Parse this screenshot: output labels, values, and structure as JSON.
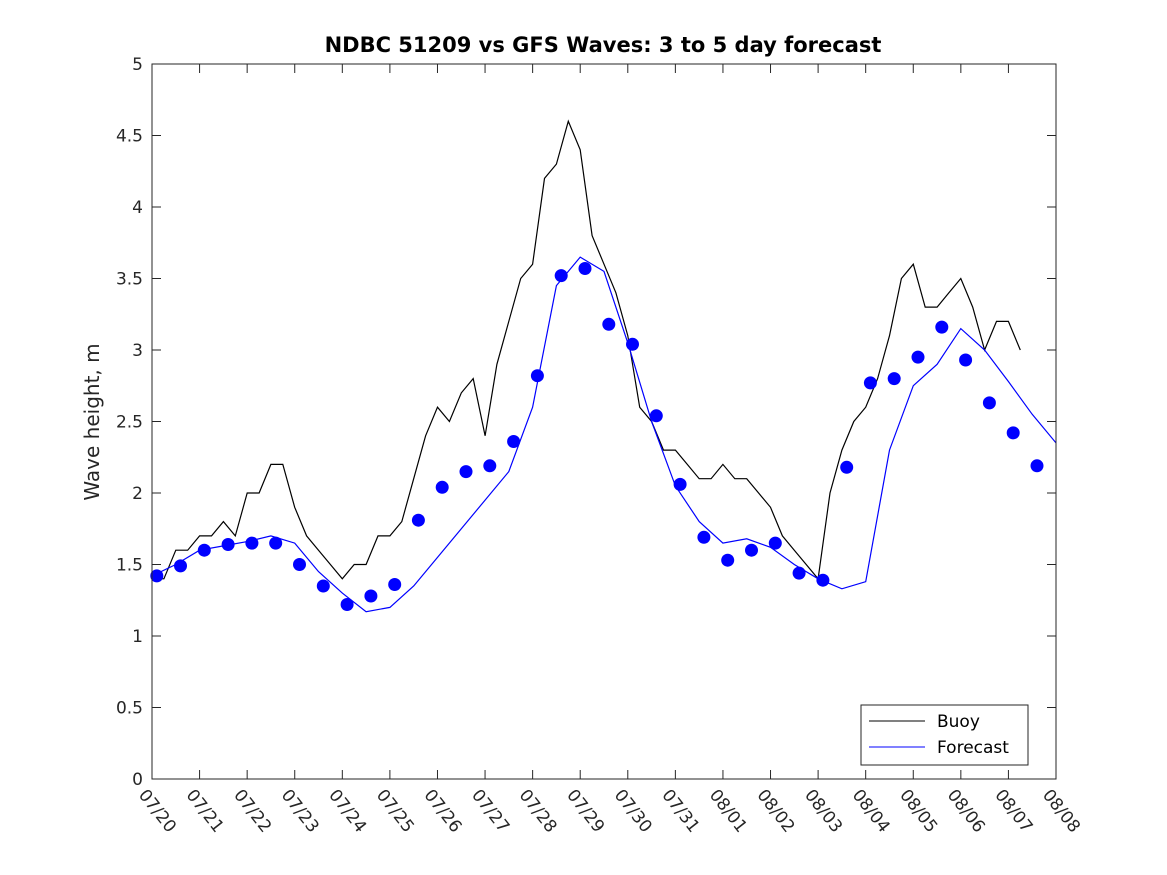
{
  "chart_data": {
    "type": "line",
    "title": "NDBC 51209 vs GFS Waves: 3 to 5 day forecast",
    "xlabel": "",
    "ylabel": "Wave height, m",
    "xlim": [
      0,
      19
    ],
    "ylim": [
      0,
      5
    ],
    "x_ticks": [
      "07/20",
      "07/21",
      "07/22",
      "07/23",
      "07/24",
      "07/25",
      "07/26",
      "07/27",
      "07/28",
      "07/29",
      "07/30",
      "07/31",
      "08/01",
      "08/02",
      "08/03",
      "08/04",
      "08/05",
      "08/06",
      "08/07",
      "08/08"
    ],
    "y_ticks": [
      "0",
      "0.5",
      "1",
      "1.5",
      "2",
      "2.5",
      "3",
      "3.5",
      "4",
      "4.5",
      "5"
    ],
    "grid": false,
    "legend_position": "bottom-right",
    "colors": {
      "buoy": "#000000",
      "forecast": "#0000ff",
      "markers": "#0000ff"
    },
    "series": [
      {
        "name": "Buoy",
        "x": [
          0.0,
          0.25,
          0.5,
          0.75,
          1.0,
          1.25,
          1.5,
          1.75,
          2.0,
          2.25,
          2.5,
          2.75,
          3.0,
          3.25,
          3.5,
          3.75,
          4.0,
          4.25,
          4.5,
          4.75,
          5.0,
          5.25,
          5.5,
          5.75,
          6.0,
          6.25,
          6.5,
          6.75,
          7.0,
          7.25,
          7.5,
          7.75,
          8.0,
          8.25,
          8.5,
          8.75,
          9.0,
          9.25,
          9.5,
          9.75,
          10.0,
          10.25,
          10.5,
          10.75,
          11.0,
          11.25,
          11.5,
          11.75,
          12.0,
          12.25,
          12.5,
          12.75,
          13.0,
          13.25,
          13.5,
          13.75,
          14.0,
          14.25,
          14.5,
          14.75,
          15.0,
          15.25,
          15.5,
          15.75,
          16.0,
          16.25,
          16.5,
          16.75,
          17.0,
          17.25,
          17.5,
          17.75,
          18.0,
          18.25
        ],
        "values": [
          1.4,
          1.4,
          1.6,
          1.6,
          1.7,
          1.7,
          1.8,
          1.7,
          2.0,
          2.0,
          2.2,
          2.2,
          1.9,
          1.7,
          1.6,
          1.5,
          1.4,
          1.5,
          1.5,
          1.7,
          1.7,
          1.8,
          2.1,
          2.4,
          2.6,
          2.5,
          2.7,
          2.8,
          2.4,
          2.9,
          3.2,
          3.5,
          3.6,
          4.2,
          4.3,
          4.6,
          4.4,
          3.8,
          3.6,
          3.4,
          3.1,
          2.6,
          2.5,
          2.3,
          2.3,
          2.2,
          2.1,
          2.1,
          2.2,
          2.1,
          2.1,
          2.0,
          1.9,
          1.7,
          1.6,
          1.5,
          1.4,
          2.0,
          2.3,
          2.5,
          2.6,
          2.8,
          3.1,
          3.5,
          3.6,
          3.3,
          3.3,
          3.4,
          3.5,
          3.3,
          3.0,
          3.2,
          3.2,
          3.0
        ]
      },
      {
        "name": "Forecast",
        "x": [
          0.0,
          0.5,
          1.0,
          1.5,
          2.0,
          2.5,
          3.0,
          3.5,
          4.0,
          4.5,
          5.0,
          5.5,
          6.0,
          6.5,
          7.0,
          7.5,
          8.0,
          8.5,
          9.0,
          9.5,
          10.0,
          10.5,
          11.0,
          11.5,
          12.0,
          12.5,
          13.0,
          13.5,
          14.0,
          14.5,
          15.0,
          15.5,
          16.0,
          16.5,
          17.0,
          17.5,
          18.0,
          18.5,
          19.0
        ],
        "values": [
          1.42,
          1.5,
          1.6,
          1.63,
          1.66,
          1.7,
          1.65,
          1.45,
          1.3,
          1.17,
          1.2,
          1.35,
          1.55,
          1.75,
          1.95,
          2.15,
          2.6,
          3.45,
          3.65,
          3.55,
          3.05,
          2.5,
          2.05,
          1.8,
          1.65,
          1.68,
          1.62,
          1.5,
          1.4,
          1.33,
          1.38,
          2.3,
          2.75,
          2.9,
          3.15,
          3.0,
          2.78,
          2.55,
          2.35
        ]
      }
    ],
    "markers": {
      "x": [
        0.1,
        0.6,
        1.1,
        1.6,
        2.1,
        2.6,
        3.1,
        3.6,
        4.1,
        4.6,
        5.1,
        5.6,
        6.1,
        6.6,
        7.1,
        7.6,
        8.1,
        8.6,
        9.1,
        9.6,
        10.1,
        10.6,
        11.1,
        11.6,
        12.1,
        12.6,
        13.1,
        13.6,
        14.1,
        14.6,
        15.1,
        15.6,
        16.1,
        16.6,
        17.1,
        17.6,
        18.1,
        18.6
      ],
      "values": [
        1.42,
        1.49,
        1.6,
        1.64,
        1.65,
        1.65,
        1.5,
        1.35,
        1.22,
        1.28,
        1.36,
        1.81,
        2.04,
        2.15,
        2.19,
        2.36,
        2.82,
        3.52,
        3.57,
        3.18,
        3.04,
        2.54,
        2.06,
        1.69,
        1.53,
        1.6,
        1.65,
        1.44,
        1.39,
        2.18,
        2.77,
        2.8,
        2.95,
        3.16,
        2.93,
        2.63,
        2.42,
        2.19
      ]
    }
  }
}
